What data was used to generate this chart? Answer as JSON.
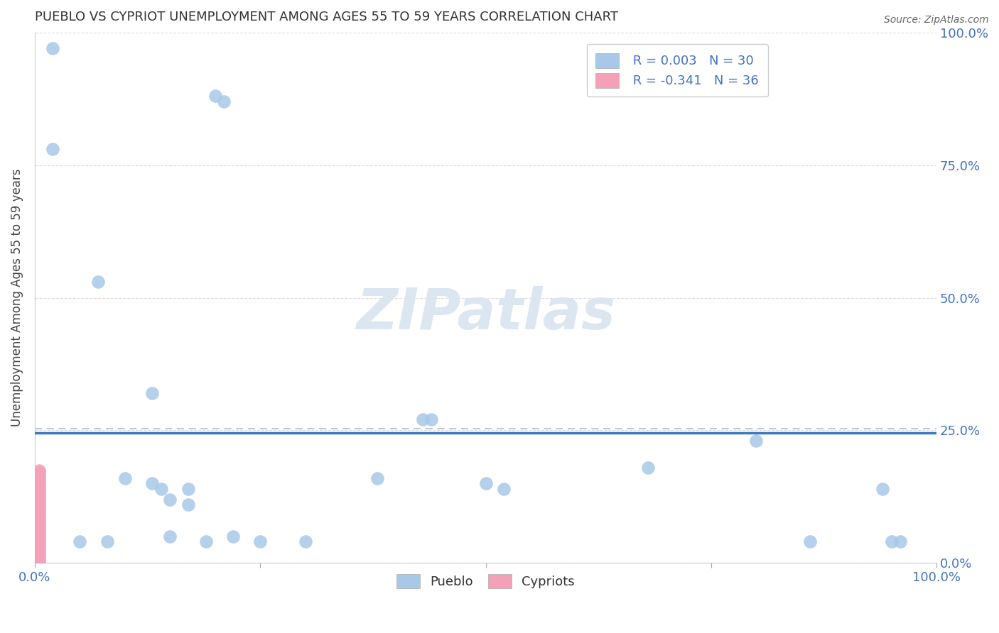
{
  "title": "PUEBLO VS CYPRIOT UNEMPLOYMENT AMONG AGES 55 TO 59 YEARS CORRELATION CHART",
  "source": "Source: ZipAtlas.com",
  "ylabel": "Unemployment Among Ages 55 to 59 years",
  "xlim": [
    0,
    1.0
  ],
  "ylim": [
    0,
    1.0
  ],
  "x_ticks": [
    0.0,
    0.25,
    0.5,
    0.75,
    1.0
  ],
  "x_tick_labels": [
    "0.0%",
    "",
    "",
    "",
    "100.0%"
  ],
  "y_ticks": [
    0.0,
    0.25,
    0.5,
    0.75,
    1.0
  ],
  "y_tick_labels_right": [
    "0.0%",
    "25.0%",
    "50.0%",
    "75.0%",
    "100.0%"
  ],
  "pueblo_color": "#a8c8e8",
  "cypriot_color": "#f4a0b8",
  "pueblo_R": "0.003",
  "pueblo_N": 30,
  "cypriot_R": "-0.341",
  "cypriot_N": 36,
  "regression_line_y_pueblo": 0.245,
  "regression_dashed_y": 0.253,
  "pueblo_points_x": [
    0.02,
    0.2,
    0.21,
    0.02,
    0.13,
    0.15,
    0.38,
    0.43,
    0.44,
    0.5,
    0.52,
    0.68,
    0.8,
    0.86,
    0.94,
    0.95,
    0.96,
    0.08,
    0.1,
    0.13,
    0.14,
    0.17,
    0.19,
    0.22,
    0.25,
    0.3,
    0.05,
    0.07,
    0.15,
    0.17
  ],
  "pueblo_points_y": [
    0.97,
    0.88,
    0.87,
    0.78,
    0.32,
    0.05,
    0.16,
    0.27,
    0.27,
    0.15,
    0.14,
    0.18,
    0.23,
    0.04,
    0.14,
    0.04,
    0.04,
    0.04,
    0.16,
    0.15,
    0.14,
    0.14,
    0.04,
    0.05,
    0.04,
    0.04,
    0.04,
    0.53,
    0.12,
    0.11
  ],
  "cypriot_points_x": [
    0.005,
    0.005,
    0.005,
    0.005,
    0.005,
    0.005,
    0.005,
    0.005,
    0.005,
    0.005,
    0.005,
    0.005,
    0.005,
    0.005,
    0.005,
    0.005,
    0.005,
    0.005,
    0.005,
    0.005,
    0.005,
    0.005,
    0.005,
    0.005,
    0.005,
    0.005,
    0.005,
    0.005,
    0.005,
    0.005,
    0.005,
    0.005,
    0.005,
    0.005,
    0.005,
    0.005
  ],
  "cypriot_points_y": [
    0.0,
    0.005,
    0.01,
    0.015,
    0.02,
    0.025,
    0.03,
    0.035,
    0.04,
    0.045,
    0.05,
    0.055,
    0.06,
    0.065,
    0.07,
    0.075,
    0.08,
    0.085,
    0.09,
    0.095,
    0.1,
    0.105,
    0.11,
    0.115,
    0.12,
    0.125,
    0.13,
    0.135,
    0.14,
    0.145,
    0.15,
    0.155,
    0.16,
    0.165,
    0.17,
    0.175
  ],
  "legend_color": "#4472c4",
  "watermark_text": "ZIPatlas",
  "watermark_color": "#dce6f1",
  "background_color": "#ffffff",
  "grid_color": "#cccccc",
  "tick_label_color": "#4472c4",
  "title_color": "#333333",
  "source_color": "#666666"
}
